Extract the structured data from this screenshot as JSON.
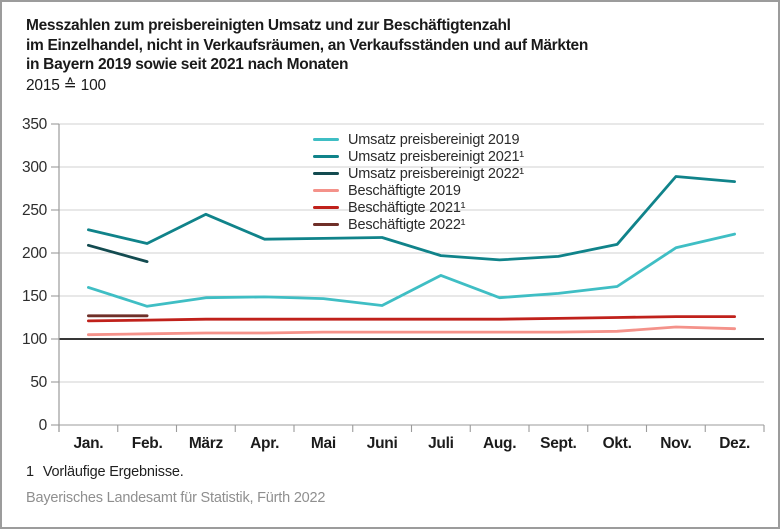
{
  "title": {
    "line1": "Messzahlen zum preisbereinigten Umsatz und zur Beschäftigtenzahl",
    "line2": "im Einzelhandel, nicht in Verkaufsräumen, an Verkaufsständen und auf Märkten",
    "line3": "in Bayern 2019 sowie seit 2021 nach Monaten",
    "subtitle": "2015 ≙ 100"
  },
  "footnote": {
    "marker": "1",
    "text": "Vorläufige Ergebnisse."
  },
  "source": "Bayerisches Landesamt für Statistik, Fürth 2022",
  "colors": {
    "grid": "#d2d2d2",
    "axis": "#9b9b9b",
    "reference_line": "#1a1a1a",
    "y_label": "#2d2d2d",
    "x_label": "#1c1c1c"
  },
  "chart_data": {
    "type": "line",
    "title": "Messzahlen zum preisbereinigten Umsatz und zur Beschäftigtenzahl im Einzelhandel, nicht in Verkaufsräumen, an Verkaufsständen und auf Märkten in Bayern 2019 sowie seit 2021 nach Monaten",
    "subtitle": "2015 ≙ 100",
    "categories": [
      "Jan.",
      "Feb.",
      "März",
      "Apr.",
      "Mai",
      "Juni",
      "Juli",
      "Aug.",
      "Sept.",
      "Okt.",
      "Nov.",
      "Dez."
    ],
    "series": [
      {
        "name": "Umsatz preisbereinigt 2019",
        "color": "#3fbec4",
        "values": [
          160,
          138,
          148,
          149,
          147,
          139,
          174,
          148,
          153,
          161,
          206,
          222
        ]
      },
      {
        "name": "Umsatz preisbereinigt 2021¹",
        "color": "#10838a",
        "values": [
          227,
          211,
          245,
          216,
          217,
          218,
          197,
          192,
          196,
          210,
          289,
          283
        ]
      },
      {
        "name": "Umsatz preisbereinigt 2022¹",
        "color": "#134b50",
        "values": [
          209,
          190,
          null,
          null,
          null,
          null,
          null,
          null,
          null,
          null,
          null,
          null
        ]
      },
      {
        "name": "Beschäftigte 2019",
        "color": "#f4928a",
        "values": [
          105,
          106,
          107,
          107,
          108,
          108,
          108,
          108,
          108,
          109,
          114,
          112
        ]
      },
      {
        "name": "Beschäftigte 2021¹",
        "color": "#c0211b",
        "values": [
          121,
          122,
          123,
          123,
          123,
          123,
          123,
          123,
          124,
          125,
          126,
          126
        ]
      },
      {
        "name": "Beschäftigte 2022¹",
        "color": "#6f2f28",
        "values": [
          127,
          127,
          null,
          null,
          null,
          null,
          null,
          null,
          null,
          null,
          null,
          null
        ]
      }
    ],
    "xlabel": "",
    "ylabel": "",
    "ylim": [
      0,
      350
    ],
    "yticks": [
      0,
      50,
      100,
      150,
      200,
      250,
      300,
      350
    ],
    "reference_line": 100,
    "grid": true,
    "legend_position": "inside-top-center"
  }
}
